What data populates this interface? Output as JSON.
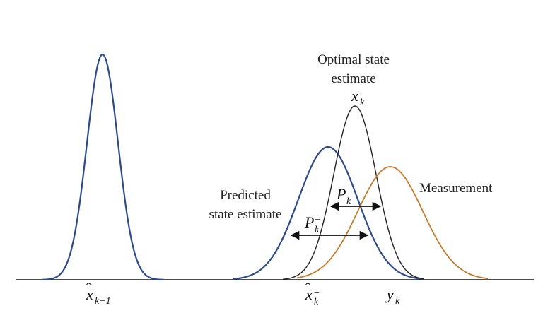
{
  "colors": {
    "prior": "#2c4a8c",
    "predicted": "#2c4a8c",
    "optimal": "#222222",
    "measurement": "#c87a2a",
    "axis": "#111111",
    "arrow": "#111111"
  },
  "labels": {
    "optimal_line1": "Optimal state",
    "optimal_line2": "estimate",
    "optimal_symbol": "x",
    "optimal_sub": "k",
    "predicted_line1": "Predicted",
    "predicted_line2": "state estimate",
    "measurement": "Measurement",
    "pk_symbol": "P",
    "pk_sub": "k",
    "pkminus_symbol": "P",
    "pkminus_sub": "k",
    "pkminus_sup": "−",
    "xhat_prev_symbol": "x",
    "xhat_prev_sub": "k−1",
    "xhat_pred_symbol": "x",
    "xhat_pred_sub": "k",
    "xhat_pred_sup": "−",
    "yk_symbol": "y",
    "yk_sub": "k",
    "hat": "ˆ"
  }
}
